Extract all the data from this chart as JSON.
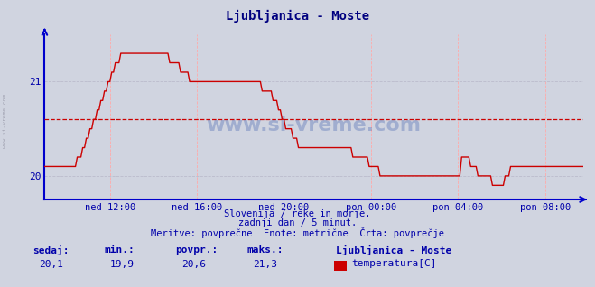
{
  "title": "Ljubljanica - Moste",
  "title_color": "#000080",
  "bg_color": "#d0d4e0",
  "plot_bg_color": "#d0d4e0",
  "line_color": "#cc0000",
  "line_width": 1.0,
  "avg_line_color": "#cc0000",
  "avg_line_value": 20.6,
  "ylim": [
    19.75,
    21.5
  ],
  "yticks": [
    20,
    21
  ],
  "xlabel_color": "#0000aa",
  "ylabel_color": "#0000aa",
  "grid_color_h": "#bbbbcc",
  "grid_color_v": "#ffaaaa",
  "axis_color": "#0000cc",
  "footer_line1": "Slovenija / reke in morje.",
  "footer_line2": "zadnji dan / 5 minut.",
  "footer_line3": "Meritve: povprečne  Enote: metrične  Črta: povprečje",
  "footer_color": "#0000aa",
  "stats_labels": [
    "sedaj:",
    "min.:",
    "povpr.:",
    "maks.:"
  ],
  "stats_values": [
    "20,1",
    "19,9",
    "20,6",
    "21,3"
  ],
  "stats_color": "#0000aa",
  "legend_label": "Ljubljanica - Moste",
  "legend_series": "temperatura[C]",
  "legend_color": "#cc0000",
  "watermark": "www.si-vreme.com",
  "watermark_color": "#3355aa",
  "side_text": "www.si-vreme.com",
  "n_points": 288,
  "xtick_positions": [
    36,
    84,
    132,
    180,
    228,
    276
  ],
  "xtick_labels": [
    "ned 12:00",
    "ned 16:00",
    "ned 20:00",
    "pon 00:00",
    "pon 04:00",
    "pon 08:00"
  ],
  "temperature_data": [
    20.1,
    20.1,
    20.1,
    20.1,
    20.1,
    20.1,
    20.1,
    20.1,
    20.1,
    20.1,
    20.1,
    20.1,
    20.1,
    20.1,
    20.1,
    20.1,
    20.1,
    20.1,
    20.2,
    20.2,
    20.2,
    20.3,
    20.3,
    20.4,
    20.4,
    20.5,
    20.5,
    20.6,
    20.6,
    20.7,
    20.7,
    20.8,
    20.8,
    20.9,
    20.9,
    21.0,
    21.0,
    21.1,
    21.1,
    21.2,
    21.2,
    21.2,
    21.3,
    21.3,
    21.3,
    21.3,
    21.3,
    21.3,
    21.3,
    21.3,
    21.3,
    21.3,
    21.3,
    21.3,
    21.3,
    21.3,
    21.3,
    21.3,
    21.3,
    21.3,
    21.3,
    21.3,
    21.3,
    21.3,
    21.3,
    21.3,
    21.3,
    21.3,
    21.3,
    21.2,
    21.2,
    21.2,
    21.2,
    21.2,
    21.2,
    21.1,
    21.1,
    21.1,
    21.1,
    21.1,
    21.0,
    21.0,
    21.0,
    21.0,
    21.0,
    21.0,
    21.0,
    21.0,
    21.0,
    21.0,
    21.0,
    21.0,
    21.0,
    21.0,
    21.0,
    21.0,
    21.0,
    21.0,
    21.0,
    21.0,
    21.0,
    21.0,
    21.0,
    21.0,
    21.0,
    21.0,
    21.0,
    21.0,
    21.0,
    21.0,
    21.0,
    21.0,
    21.0,
    21.0,
    21.0,
    21.0,
    21.0,
    21.0,
    21.0,
    21.0,
    20.9,
    20.9,
    20.9,
    20.9,
    20.9,
    20.9,
    20.8,
    20.8,
    20.8,
    20.7,
    20.7,
    20.6,
    20.6,
    20.5,
    20.5,
    20.5,
    20.5,
    20.4,
    20.4,
    20.4,
    20.3,
    20.3,
    20.3,
    20.3,
    20.3,
    20.3,
    20.3,
    20.3,
    20.3,
    20.3,
    20.3,
    20.3,
    20.3,
    20.3,
    20.3,
    20.3,
    20.3,
    20.3,
    20.3,
    20.3,
    20.3,
    20.3,
    20.3,
    20.3,
    20.3,
    20.3,
    20.3,
    20.3,
    20.3,
    20.3,
    20.2,
    20.2,
    20.2,
    20.2,
    20.2,
    20.2,
    20.2,
    20.2,
    20.2,
    20.1,
    20.1,
    20.1,
    20.1,
    20.1,
    20.1,
    20.0,
    20.0,
    20.0,
    20.0,
    20.0,
    20.0,
    20.0,
    20.0,
    20.0,
    20.0,
    20.0,
    20.0,
    20.0,
    20.0,
    20.0,
    20.0,
    20.0,
    20.0,
    20.0,
    20.0,
    20.0,
    20.0,
    20.0,
    20.0,
    20.0,
    20.0,
    20.0,
    20.0,
    20.0,
    20.0,
    20.0,
    20.0,
    20.0,
    20.0,
    20.0,
    20.0,
    20.0,
    20.0,
    20.0,
    20.0,
    20.0,
    20.0,
    20.0,
    20.0,
    20.0,
    20.2,
    20.2,
    20.2,
    20.2,
    20.2,
    20.1,
    20.1,
    20.1,
    20.1,
    20.0,
    20.0,
    20.0,
    20.0,
    20.0,
    20.0,
    20.0,
    20.0,
    19.9,
    19.9,
    19.9,
    19.9,
    19.9,
    19.9,
    19.9,
    20.0,
    20.0,
    20.0,
    20.1,
    20.1,
    20.1,
    20.1,
    20.1,
    20.1,
    20.1,
    20.1,
    20.1,
    20.1,
    20.1,
    20.1,
    20.1,
    20.1,
    20.1,
    20.1,
    20.1,
    20.1,
    20.1,
    20.1,
    20.1,
    20.1,
    20.1,
    20.1,
    20.1,
    20.1,
    20.1,
    20.1,
    20.1,
    20.1,
    20.1,
    20.1,
    20.1,
    20.1,
    20.1,
    20.1,
    20.1,
    20.1,
    20.1,
    20.1,
    20.1
  ]
}
